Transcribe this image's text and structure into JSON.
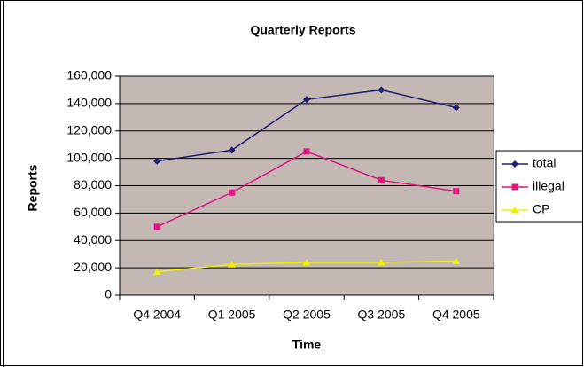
{
  "chart_data": {
    "type": "line",
    "title": "Quarterly Reports",
    "x_label": "Time",
    "y_label": "Reports",
    "categories": [
      "Q4 2004",
      "Q1 2005",
      "Q2 2005",
      "Q3 2005",
      "Q4 2005"
    ],
    "series": [
      {
        "name": "total",
        "color": "#1f1f6e",
        "marker": "diamond",
        "values": [
          98000,
          106000,
          143000,
          150000,
          137000
        ]
      },
      {
        "name": "illegal",
        "color": "#e0177f",
        "marker": "square",
        "values": [
          50000,
          75000,
          105000,
          84000,
          76000
        ]
      },
      {
        "name": "CP",
        "color": "#f0f000",
        "marker": "triangle",
        "values": [
          17000,
          22500,
          24000,
          24000,
          25000
        ]
      }
    ],
    "ylim": [
      0,
      160000
    ],
    "yticks": [
      0,
      {
        "value": 20000,
        "label": "20,000"
      },
      {
        "value": 40000,
        "label": "40,000"
      },
      {
        "value": 60000,
        "label": "60,000"
      },
      {
        "value": 80000,
        "label": "80,000"
      },
      {
        "value": 100000,
        "label": "100,000"
      },
      {
        "value": 120000,
        "label": "120,000"
      },
      {
        "value": 140000,
        "label": "140,000"
      },
      {
        "value": 160000,
        "label": "160,000"
      }
    ],
    "grid": true,
    "legend": "right",
    "plot_background": "#c4b8b4"
  }
}
